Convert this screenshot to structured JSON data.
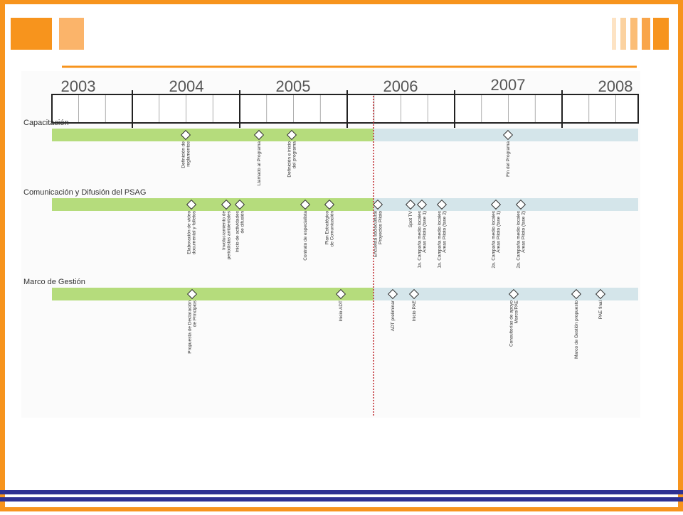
{
  "timeline": {
    "years": [
      "2003",
      "2004",
      "2005",
      "2006",
      "2007",
      "2008"
    ],
    "rows": [
      {
        "title": "Capacitación",
        "milestones": [
          {
            "label": [
              "Definición de",
              "reglamentos"
            ]
          },
          {
            "label": [
              "Llamado al Programa"
            ]
          },
          {
            "label": [
              "Definición e inicio",
              "del programa"
            ]
          },
          {
            "label": [
              "Fin del Programa"
            ]
          }
        ]
      },
      {
        "title": "Comunicación y Difusión del PSAG",
        "milestones": [
          {
            "label": [
              "Elaboración de video",
              "documental y folletos"
            ]
          },
          {
            "label": [
              "Involucramiento de",
              "periodistas ambientales"
            ]
          },
          {
            "label": [
              "Inicio de actividades",
              "de difusión"
            ]
          },
          {
            "label": [
              "Contrato de especialista"
            ]
          },
          {
            "label": [
              "Plan Estratégico",
              "de Comunicación"
            ]
          },
          {
            "label": [
              "Encuesta sociocultural",
              "Proyectos Piloto"
            ]
          },
          {
            "label": [
              "Spot TV"
            ]
          },
          {
            "label": [
              "1a. Campaña medio locales",
              "Áreas Piloto (fase 1)"
            ]
          },
          {
            "label": [
              "1a. Campaña medio locales",
              "Áreas Piloto (fase 2)"
            ]
          },
          {
            "label": [
              "2a. Campaña medio locales",
              "Áreas Piloto (fase 1)"
            ]
          },
          {
            "label": [
              "2a. Campaña medio locales",
              "Áreas Piloto (fase 2)"
            ]
          }
        ]
      },
      {
        "title": "Marco de Gestión",
        "milestones": [
          {
            "label": [
              "Propuesta de Declaración",
              "de Principios"
            ]
          },
          {
            "label": [
              "Inicio ADT"
            ]
          },
          {
            "label": [
              "ADT preliminar"
            ]
          },
          {
            "label": [
              "Inicio PAE"
            ]
          },
          {
            "label": [
              "Consultorías de apoyo",
              "Marco/PAE"
            ]
          },
          {
            "label": [
              "Marco de Gestión propuesto"
            ]
          },
          {
            "label": [
              "PAE final"
            ]
          }
        ]
      }
    ]
  }
}
